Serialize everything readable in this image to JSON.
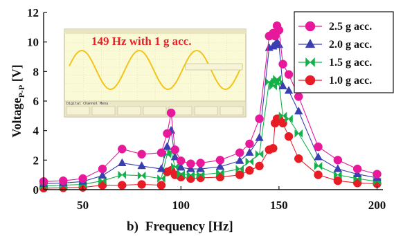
{
  "chart_data": {
    "type": "line",
    "panel_label": "b)",
    "xlabel": "Frequency [Hz]",
    "ylabel": {
      "main": "Voltage",
      "subscript": "P-P",
      "unit": " [V]"
    },
    "xlim": [
      30,
      203
    ],
    "ylim": [
      0,
      12
    ],
    "xticks": [
      50,
      100,
      150,
      200
    ],
    "yticks": [
      0,
      2,
      4,
      6,
      8,
      10,
      12
    ],
    "grid": false,
    "legend_position": "top-right",
    "x": [
      30,
      40,
      50,
      60,
      70,
      80,
      90,
      93,
      95,
      97,
      100,
      105,
      110,
      120,
      130,
      135,
      140,
      145,
      147,
      148,
      149,
      150,
      152,
      155,
      160,
      170,
      180,
      190,
      200
    ],
    "series": [
      {
        "name": "2.5 g acc.",
        "color": "#e8189a",
        "marker": "circle",
        "values": [
          0.55,
          0.6,
          0.75,
          1.4,
          2.75,
          2.4,
          2.5,
          3.8,
          5.2,
          2.7,
          1.95,
          1.75,
          1.8,
          2.0,
          2.5,
          3.1,
          4.8,
          10.4,
          10.6,
          10.4,
          11.1,
          10.8,
          8.5,
          7.8,
          6.3,
          2.9,
          2.0,
          1.4,
          1.05
        ]
      },
      {
        "name": "2.0 g acc.",
        "color": "#3a3fb0",
        "marker": "triangle",
        "values": [
          0.4,
          0.45,
          0.55,
          0.95,
          1.8,
          1.6,
          1.4,
          2.9,
          4.0,
          2.2,
          1.5,
          1.4,
          1.4,
          1.55,
          1.95,
          2.5,
          3.5,
          9.6,
          9.7,
          9.8,
          10.0,
          9.8,
          7.0,
          6.7,
          5.3,
          2.2,
          1.4,
          1.05,
          0.8
        ]
      },
      {
        "name": "1.5 g acc.",
        "color": "#14b04a",
        "marker": "bowtie",
        "values": [
          0.25,
          0.3,
          0.35,
          0.6,
          1.0,
          0.95,
          0.75,
          2.4,
          2.55,
          1.55,
          1.05,
          1.0,
          1.0,
          1.15,
          1.4,
          1.9,
          2.4,
          7.3,
          7.0,
          7.3,
          7.5,
          7.2,
          5.0,
          4.8,
          3.8,
          1.6,
          1.0,
          0.75,
          0.55
        ]
      },
      {
        "name": "1.0 g acc.",
        "color": "#e81c24",
        "marker": "circle",
        "values": [
          0.1,
          0.12,
          0.15,
          0.3,
          0.3,
          0.35,
          0.3,
          1.2,
          1.3,
          1.0,
          0.85,
          0.75,
          0.8,
          0.85,
          1.0,
          1.3,
          1.6,
          2.7,
          2.8,
          4.5,
          4.8,
          4.8,
          4.5,
          3.6,
          2.1,
          1.0,
          0.6,
          0.45,
          0.4
        ]
      }
    ]
  },
  "inset": {
    "label": "149 Hz with 1 g acc.",
    "footer_title": "Digital Channel Menu"
  },
  "colors": {
    "inset_background": "#fbfad6",
    "waveform": "#f2c419",
    "inset_label": "#e8202a"
  }
}
